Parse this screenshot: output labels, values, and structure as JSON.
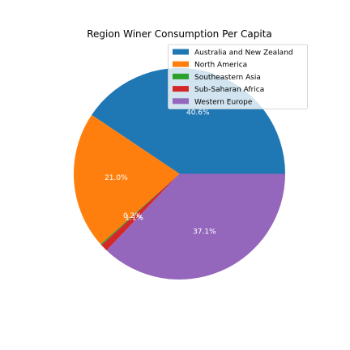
{
  "chart_data": {
    "type": "pie",
    "title": "Region Winer Consumption Per Capita",
    "start_angle": 0,
    "direction": "counterclockwise",
    "legend_position": "top-right",
    "slices": [
      {
        "label": "Australia and New Zealand",
        "value": 40.6,
        "pct_label": "40.6%",
        "color": "#1f77b4"
      },
      {
        "label": "North America",
        "value": 21.0,
        "pct_label": "21.0%",
        "color": "#ff7f0e"
      },
      {
        "label": "Southeastern Asia",
        "value": 0.2,
        "pct_label": "0.2%",
        "color": "#2ca02c"
      },
      {
        "label": "Sub-Saharan Africa",
        "value": 1.1,
        "pct_label": "1.1%",
        "color": "#d62728"
      },
      {
        "label": "Western Europe",
        "value": 37.1,
        "pct_label": "37.1%",
        "color": "#9467bd"
      }
    ]
  }
}
